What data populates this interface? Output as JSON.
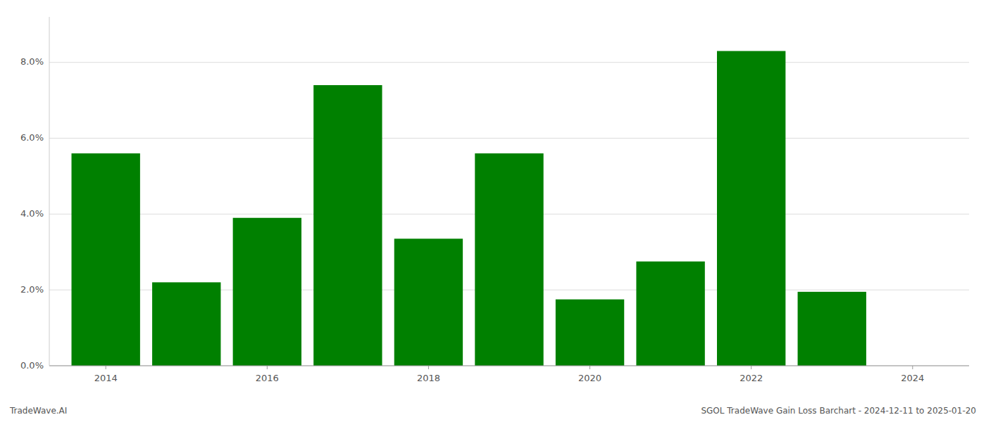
{
  "chart_data": {
    "type": "bar",
    "x": [
      2014,
      2015,
      2016,
      2017,
      2018,
      2019,
      2020,
      2021,
      2022,
      2023
    ],
    "values": [
      0.056,
      0.022,
      0.039,
      0.074,
      0.0335,
      0.056,
      0.0175,
      0.0275,
      0.083,
      0.0195
    ],
    "color": "#008000",
    "xlim": [
      2013.3,
      2024.7
    ],
    "xticks": [
      2014,
      2016,
      2018,
      2020,
      2022,
      2024
    ],
    "ylim": [
      0,
      0.092
    ],
    "yticks": [
      {
        "value": 0.0,
        "label": "0.0%"
      },
      {
        "value": 0.02,
        "label": "2.0%"
      },
      {
        "value": 0.04,
        "label": "4.0%"
      },
      {
        "value": 0.06,
        "label": "6.0%"
      },
      {
        "value": 0.08,
        "label": "8.0%"
      }
    ],
    "grid": true,
    "annotations": [
      "TradeWave.AI",
      "SGOL TradeWave Gain Loss Barchart - 2024-12-11 to 2025-01-20"
    ]
  }
}
